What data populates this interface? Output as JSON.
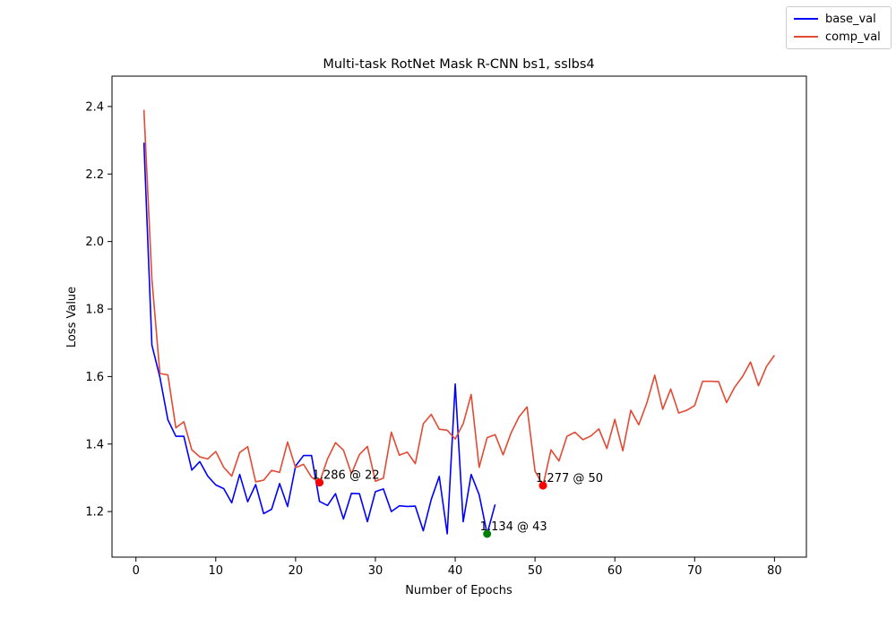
{
  "chart_data": {
    "type": "line",
    "title": "Multi-task RotNet Mask R-CNN bs1, sslbs4",
    "xlabel": "Number of Epochs",
    "ylabel": "Loss Value",
    "xlim": [
      -3,
      84
    ],
    "ylim": [
      1.065,
      2.49
    ],
    "xticks": [
      0,
      10,
      20,
      30,
      40,
      50,
      60,
      70,
      80
    ],
    "yticks": [
      1.2,
      1.4,
      1.6,
      1.8,
      2.0,
      2.2,
      2.4
    ],
    "xtick_labels": [
      "0",
      "10",
      "20",
      "30",
      "40",
      "50",
      "60",
      "70",
      "80"
    ],
    "ytick_labels": [
      "1.2",
      "1.4",
      "1.6",
      "1.8",
      "2.0",
      "2.2",
      "2.4"
    ],
    "grid": false,
    "legend_position": "top-right",
    "series": [
      {
        "name": "base_val",
        "color": "#0000ff",
        "x": [
          1,
          2,
          3,
          4,
          5,
          6,
          7,
          8,
          9,
          10,
          11,
          12,
          13,
          14,
          15,
          16,
          17,
          18,
          19,
          20,
          21,
          22,
          23,
          24,
          25,
          26,
          27,
          28,
          29,
          30,
          31,
          32,
          33,
          34,
          35,
          36,
          37,
          38,
          39,
          40,
          41,
          42,
          43,
          44,
          45
        ],
        "values": [
          2.293,
          1.693,
          1.598,
          1.472,
          1.423,
          1.423,
          1.323,
          1.348,
          1.305,
          1.279,
          1.268,
          1.226,
          1.31,
          1.229,
          1.28,
          1.194,
          1.207,
          1.283,
          1.215,
          1.335,
          1.366,
          1.366,
          1.23,
          1.218,
          1.253,
          1.178,
          1.254,
          1.253,
          1.17,
          1.259,
          1.267,
          1.2,
          1.217,
          1.215,
          1.216,
          1.143,
          1.236,
          1.304,
          1.134,
          1.578,
          1.17,
          1.31,
          1.25,
          1.134,
          1.221
        ]
      },
      {
        "name": "comp_val",
        "color": "#e24a33",
        "x": [
          1,
          2,
          3,
          4,
          5,
          6,
          7,
          8,
          9,
          10,
          11,
          12,
          13,
          14,
          15,
          16,
          17,
          18,
          19,
          20,
          21,
          22,
          23,
          24,
          25,
          26,
          27,
          28,
          29,
          30,
          31,
          32,
          33,
          34,
          35,
          36,
          37,
          38,
          39,
          40,
          41,
          42,
          43,
          44,
          45,
          46,
          47,
          48,
          49,
          50,
          51,
          52,
          53,
          54,
          55,
          56,
          57,
          58,
          59,
          60,
          61,
          62,
          63,
          64,
          65,
          66,
          67,
          68,
          69,
          70,
          71,
          72,
          73,
          74,
          75,
          76,
          77,
          78,
          79,
          80
        ],
        "values": [
          2.39,
          1.888,
          1.609,
          1.605,
          1.448,
          1.466,
          1.383,
          1.362,
          1.356,
          1.378,
          1.331,
          1.305,
          1.375,
          1.392,
          1.288,
          1.293,
          1.322,
          1.316,
          1.406,
          1.33,
          1.34,
          1.302,
          1.286,
          1.356,
          1.404,
          1.382,
          1.312,
          1.369,
          1.393,
          1.29,
          1.299,
          1.435,
          1.367,
          1.376,
          1.342,
          1.46,
          1.488,
          1.444,
          1.441,
          1.415,
          1.46,
          1.547,
          1.331,
          1.419,
          1.428,
          1.368,
          1.433,
          1.481,
          1.51,
          1.32,
          1.277,
          1.383,
          1.35,
          1.423,
          1.435,
          1.413,
          1.424,
          1.445,
          1.387,
          1.473,
          1.38,
          1.5,
          1.457,
          1.521,
          1.604,
          1.503,
          1.563,
          1.492,
          1.5,
          1.514,
          1.586,
          1.586,
          1.585,
          1.523,
          1.568,
          1.6,
          1.643,
          1.573,
          1.63,
          1.663
        ]
      }
    ],
    "annotations": [
      {
        "text": "1.286 @ 22",
        "x": 23,
        "y": 1.286,
        "color": "#ff0000"
      },
      {
        "text": "1.277 @ 50",
        "x": 51,
        "y": 1.277,
        "color": "#ff0000"
      },
      {
        "text": "1.134 @ 43",
        "x": 44,
        "y": 1.134,
        "color": "#008000"
      }
    ]
  }
}
